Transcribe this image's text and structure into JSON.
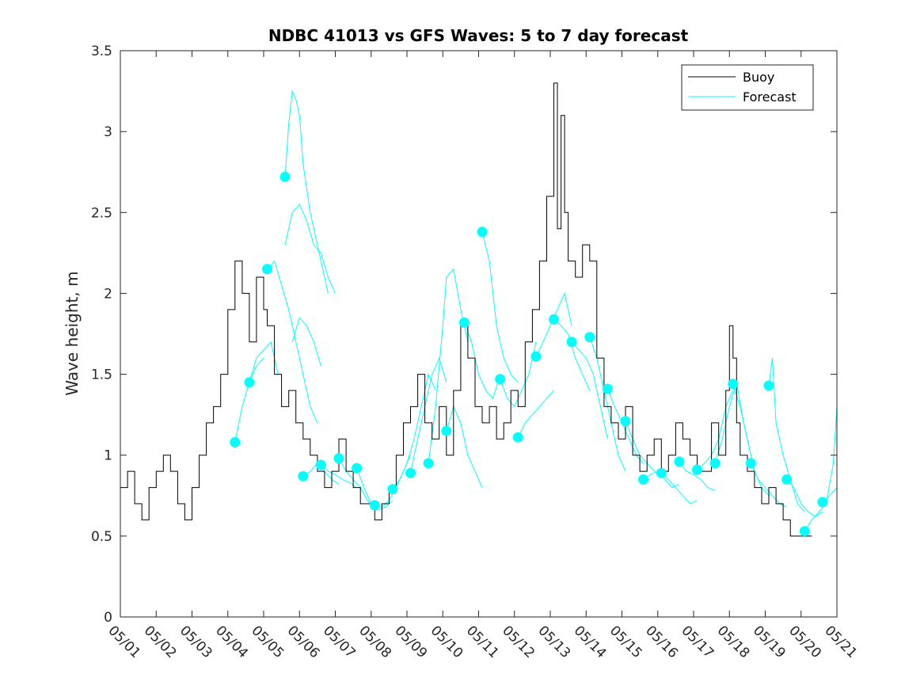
{
  "chart_data": {
    "type": "line",
    "title": "NDBC 41013 vs GFS Waves: 5 to 7 day forecast",
    "xlabel": "",
    "ylabel": "Wave height, m",
    "xlim": [
      1,
      21
    ],
    "ylim": [
      0,
      3.5
    ],
    "grid": false,
    "legend_position": "top-right",
    "x_tick_labels": [
      "05/01",
      "05/02",
      "05/03",
      "05/04",
      "05/05",
      "05/06",
      "05/07",
      "05/08",
      "05/09",
      "05/10",
      "05/11",
      "05/12",
      "05/13",
      "05/14",
      "05/15",
      "05/16",
      "05/17",
      "05/18",
      "05/19",
      "05/20",
      "05/21"
    ],
    "y_tick_labels": [
      "0",
      "0.5",
      "1",
      "1.5",
      "2",
      "2.5",
      "3",
      "3.5"
    ],
    "colors": {
      "buoy": "#000000",
      "forecast": "#00ffff"
    },
    "series": [
      {
        "name": "Buoy",
        "x": [
          1.0,
          1.2,
          1.4,
          1.6,
          1.8,
          2.0,
          2.2,
          2.4,
          2.6,
          2.8,
          3.0,
          3.2,
          3.4,
          3.6,
          3.8,
          4.0,
          4.2,
          4.4,
          4.6,
          4.8,
          5.0,
          5.1,
          5.3,
          5.5,
          5.7,
          5.9,
          6.1,
          6.3,
          6.5,
          6.7,
          6.9,
          7.1,
          7.3,
          7.5,
          7.7,
          7.9,
          8.1,
          8.3,
          8.5,
          8.7,
          8.9,
          9.1,
          9.3,
          9.5,
          9.7,
          9.9,
          10.1,
          10.3,
          10.5,
          10.7,
          10.9,
          11.1,
          11.3,
          11.5,
          11.7,
          11.9,
          12.1,
          12.3,
          12.5,
          12.7,
          12.9,
          13.1,
          13.2,
          13.3,
          13.4,
          13.5,
          13.7,
          13.9,
          14.1,
          14.3,
          14.5,
          14.7,
          14.9,
          15.1,
          15.3,
          15.5,
          15.7,
          15.9,
          16.1,
          16.3,
          16.5,
          16.7,
          16.9,
          17.1,
          17.3,
          17.5,
          17.7,
          17.9,
          18.0,
          18.1,
          18.2,
          18.3,
          18.5,
          18.7,
          18.9,
          19.1,
          19.3,
          19.5,
          19.7,
          19.9,
          20.1,
          20.2
        ],
        "y": [
          0.8,
          0.9,
          0.7,
          0.6,
          0.8,
          0.9,
          1.0,
          0.9,
          0.7,
          0.6,
          0.8,
          1.0,
          1.2,
          1.3,
          1.5,
          1.9,
          2.2,
          2.0,
          1.7,
          2.1,
          1.9,
          1.8,
          1.5,
          1.3,
          1.4,
          1.2,
          1.1,
          1.0,
          0.9,
          0.8,
          0.9,
          1.1,
          0.9,
          0.8,
          0.7,
          0.7,
          0.6,
          0.7,
          0.8,
          1.0,
          1.2,
          1.3,
          1.5,
          1.2,
          1.1,
          1.3,
          1.0,
          1.4,
          1.8,
          1.6,
          1.3,
          1.2,
          1.3,
          1.1,
          1.2,
          1.4,
          1.3,
          1.7,
          1.9,
          2.2,
          2.6,
          3.3,
          2.4,
          3.1,
          2.5,
          2.2,
          2.1,
          2.3,
          2.2,
          1.6,
          1.3,
          1.2,
          1.1,
          1.3,
          1.0,
          0.9,
          1.0,
          1.1,
          0.9,
          1.0,
          1.2,
          1.1,
          1.0,
          0.9,
          0.9,
          1.2,
          1.0,
          1.4,
          1.8,
          1.6,
          1.2,
          1.0,
          0.9,
          0.8,
          0.7,
          0.8,
          0.7,
          0.6,
          0.5,
          0.5,
          0.5,
          0.5
        ]
      },
      {
        "name": "Forecast",
        "segments": [
          {
            "x": [
              4.2,
              4.4,
              4.6,
              4.8,
              5.0
            ],
            "y": [
              1.08,
              1.3,
              1.45,
              1.55,
              1.6
            ]
          },
          {
            "x": [
              4.6,
              4.8,
              5.0,
              5.2,
              5.4
            ],
            "y": [
              1.45,
              1.6,
              1.65,
              1.7,
              1.5
            ]
          },
          {
            "x": [
              5.1,
              5.3,
              5.5,
              5.7,
              5.9,
              6.1,
              6.3,
              6.5
            ],
            "y": [
              2.15,
              2.2,
              2.05,
              1.9,
              1.7,
              1.5,
              1.3,
              1.2
            ]
          },
          {
            "x": [
              5.6,
              5.7,
              5.8,
              5.9,
              6.0,
              6.1,
              6.3,
              6.5,
              6.7,
              6.8
            ],
            "y": [
              2.72,
              3.05,
              3.25,
              3.2,
              3.1,
              2.8,
              2.5,
              2.3,
              2.1,
              2.0
            ]
          },
          {
            "x": [
              5.6,
              5.8,
              6.0,
              6.2,
              6.4,
              6.6,
              6.8,
              7.0
            ],
            "y": [
              2.3,
              2.5,
              2.55,
              2.45,
              2.3,
              2.25,
              2.1,
              2.0
            ]
          },
          {
            "x": [
              5.8,
              6.0,
              6.2,
              6.4,
              6.6
            ],
            "y": [
              1.7,
              1.85,
              1.8,
              1.7,
              1.55
            ]
          },
          {
            "x": [
              6.1,
              6.3,
              6.5,
              6.7,
              6.9,
              7.1
            ],
            "y": [
              0.87,
              0.9,
              0.95,
              0.9,
              0.85,
              0.82
            ]
          },
          {
            "x": [
              6.6,
              6.8,
              7.0,
              7.2,
              7.4,
              7.6
            ],
            "y": [
              0.94,
              0.9,
              0.88,
              0.85,
              0.83,
              0.8
            ]
          },
          {
            "x": [
              7.1,
              7.3,
              7.5,
              7.7,
              7.9,
              8.1
            ],
            "y": [
              0.98,
              0.9,
              0.85,
              0.8,
              0.72,
              0.68
            ]
          },
          {
            "x": [
              7.6,
              7.8,
              8.0,
              8.2,
              8.4,
              8.6
            ],
            "y": [
              0.92,
              0.8,
              0.7,
              0.66,
              0.68,
              0.72
            ]
          },
          {
            "x": [
              8.1,
              8.3,
              8.5,
              8.7,
              8.9,
              9.1
            ],
            "y": [
              0.69,
              0.68,
              0.72,
              0.8,
              0.9,
              1.0
            ]
          },
          {
            "x": [
              8.6,
              8.8,
              9.0,
              9.2,
              9.4,
              9.6,
              9.8
            ],
            "y": [
              0.79,
              0.85,
              0.95,
              1.1,
              1.3,
              1.5,
              1.4
            ]
          },
          {
            "x": [
              9.1,
              9.3,
              9.5,
              9.7,
              9.9,
              10.1
            ],
            "y": [
              0.89,
              1.1,
              1.3,
              1.5,
              1.6,
              1.45
            ]
          },
          {
            "x": [
              9.6,
              9.8,
              10.0,
              10.1,
              10.3,
              10.5,
              10.7
            ],
            "y": [
              0.95,
              1.3,
              1.8,
              2.1,
              2.15,
              1.9,
              1.7
            ]
          },
          {
            "x": [
              10.1,
              10.3,
              10.5,
              10.7,
              10.9,
              11.1
            ],
            "y": [
              1.15,
              1.3,
              1.2,
              1.0,
              0.9,
              0.8
            ]
          },
          {
            "x": [
              10.6,
              10.8,
              11.0,
              11.2,
              11.4,
              11.6
            ],
            "y": [
              1.82,
              1.7,
              1.5,
              1.4,
              1.35,
              1.5
            ]
          },
          {
            "x": [
              11.1,
              11.3,
              11.5,
              11.7,
              11.9,
              12.1
            ],
            "y": [
              2.38,
              2.2,
              1.8,
              1.6,
              1.5,
              1.45
            ]
          },
          {
            "x": [
              11.6,
              11.8,
              12.0,
              12.2,
              12.4,
              12.6
            ],
            "y": [
              1.47,
              1.35,
              1.3,
              1.4,
              1.5,
              1.7
            ]
          },
          {
            "x": [
              12.1,
              12.3,
              12.5,
              12.7,
              12.9,
              13.1
            ],
            "y": [
              1.11,
              1.2,
              1.25,
              1.3,
              1.35,
              1.4
            ]
          },
          {
            "x": [
              12.6,
              12.8,
              13.0,
              13.2,
              13.4,
              13.6
            ],
            "y": [
              1.61,
              1.7,
              1.8,
              1.9,
              2.0,
              1.8
            ]
          },
          {
            "x": [
              13.1,
              13.3,
              13.5,
              13.7,
              13.9,
              14.1
            ],
            "y": [
              1.84,
              1.8,
              1.75,
              1.6,
              1.5,
              1.4
            ]
          },
          {
            "x": [
              13.6,
              13.8,
              14.0,
              14.2,
              14.4,
              14.6
            ],
            "y": [
              1.7,
              1.65,
              1.6,
              1.5,
              1.3,
              1.1
            ]
          },
          {
            "x": [
              14.1,
              14.3,
              14.5,
              14.7,
              14.9,
              15.1
            ],
            "y": [
              1.73,
              1.6,
              1.4,
              1.2,
              1.0,
              0.9
            ]
          },
          {
            "x": [
              14.6,
              14.8,
              15.0,
              15.2,
              15.4,
              15.6
            ],
            "y": [
              1.41,
              1.3,
              1.2,
              1.1,
              1.0,
              0.95
            ]
          },
          {
            "x": [
              15.1,
              15.3,
              15.5,
              15.7,
              15.9,
              16.1
            ],
            "y": [
              1.21,
              1.1,
              1.0,
              0.95,
              0.9,
              0.88
            ]
          },
          {
            "x": [
              15.6,
              15.8,
              16.0,
              16.2,
              16.4,
              16.6
            ],
            "y": [
              0.85,
              0.88,
              0.9,
              0.85,
              0.8,
              0.82
            ]
          },
          {
            "x": [
              16.1,
              16.3,
              16.5,
              16.7,
              16.9,
              17.1
            ],
            "y": [
              0.89,
              0.85,
              0.8,
              0.75,
              0.7,
              0.72
            ]
          },
          {
            "x": [
              16.6,
              16.8,
              17.0,
              17.2,
              17.4,
              17.6
            ],
            "y": [
              0.96,
              0.9,
              0.88,
              0.85,
              0.8,
              0.78
            ]
          },
          {
            "x": [
              17.1,
              17.3,
              17.5,
              17.7,
              17.9,
              18.1
            ],
            "y": [
              0.91,
              0.95,
              1.0,
              1.1,
              1.3,
              1.4
            ]
          },
          {
            "x": [
              17.6,
              17.8,
              18.0,
              18.2,
              18.4,
              18.6
            ],
            "y": [
              0.95,
              1.1,
              1.3,
              1.45,
              1.2,
              1.0
            ]
          },
          {
            "x": [
              18.1,
              18.3,
              18.5,
              18.7,
              18.9,
              19.1
            ],
            "y": [
              1.44,
              1.3,
              1.1,
              0.9,
              0.8,
              0.75
            ]
          },
          {
            "x": [
              18.6,
              18.8,
              19.0,
              19.2,
              19.4,
              19.6
            ],
            "y": [
              0.95,
              0.85,
              0.8,
              0.75,
              0.7,
              0.68
            ]
          },
          {
            "x": [
              19.1,
              19.2,
              19.3,
              19.5,
              19.7,
              19.9,
              20.1
            ],
            "y": [
              1.43,
              1.6,
              1.2,
              1.0,
              0.85,
              0.7,
              0.65
            ]
          },
          {
            "x": [
              19.6,
              19.8,
              20.0,
              20.2,
              20.4,
              20.6
            ],
            "y": [
              0.85,
              0.8,
              0.7,
              0.65,
              0.62,
              0.65
            ]
          },
          {
            "x": [
              20.1,
              20.3,
              20.5,
              20.7,
              20.9,
              21.0
            ],
            "y": [
              0.53,
              0.6,
              0.65,
              0.7,
              0.95,
              1.3
            ]
          },
          {
            "x": [
              20.6,
              20.8,
              21.0
            ],
            "y": [
              0.71,
              0.75,
              0.8
            ]
          }
        ],
        "markers": {
          "x": [
            4.2,
            4.6,
            5.1,
            5.6,
            6.1,
            6.6,
            7.1,
            7.6,
            8.1,
            8.6,
            9.1,
            9.6,
            10.1,
            10.6,
            11.1,
            11.6,
            12.1,
            12.6,
            13.1,
            13.6,
            14.1,
            14.6,
            15.1,
            15.6,
            16.1,
            16.6,
            17.1,
            17.6,
            18.1,
            18.6,
            19.1,
            19.6,
            20.1,
            20.6
          ],
          "y": [
            1.08,
            1.45,
            2.15,
            2.72,
            0.87,
            0.94,
            0.98,
            0.92,
            0.69,
            0.79,
            0.89,
            0.95,
            1.15,
            1.82,
            2.38,
            1.47,
            1.11,
            1.61,
            1.84,
            1.7,
            1.73,
            1.41,
            1.21,
            0.85,
            0.89,
            0.96,
            0.91,
            0.95,
            1.44,
            0.95,
            1.43,
            0.85,
            0.53,
            0.71
          ]
        }
      }
    ]
  }
}
